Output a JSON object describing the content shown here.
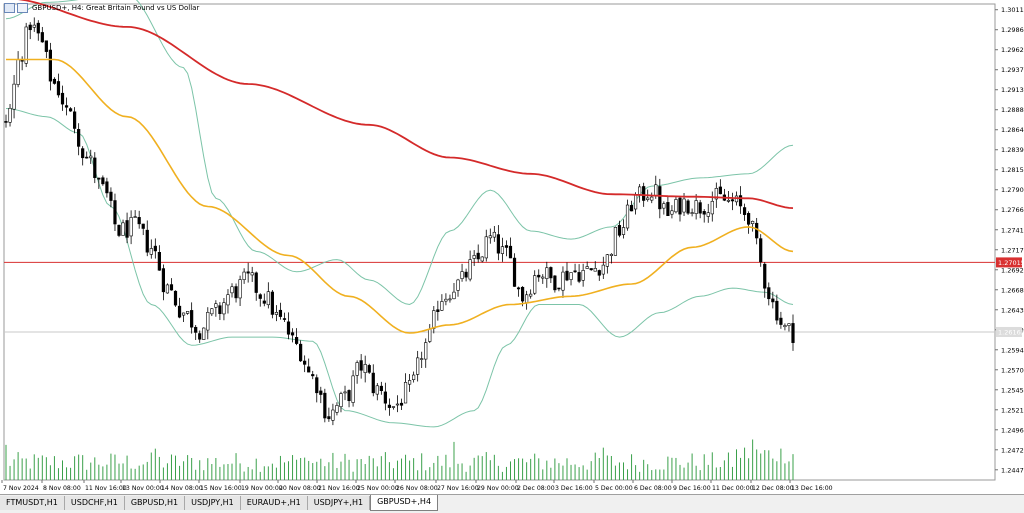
{
  "window": {
    "title": "GBPUSD+, H4:  Great Britain Pound vs US Dollar"
  },
  "tabs": [
    {
      "label": "FTMUSDT,H1",
      "active": false
    },
    {
      "label": "USDCHF,H1",
      "active": false
    },
    {
      "label": "GBPUSD,H1",
      "active": false
    },
    {
      "label": "USDJPY,H1",
      "active": false
    },
    {
      "label": "EURAUD+,H1",
      "active": false
    },
    {
      "label": "USDJPY+,H1",
      "active": false
    },
    {
      "label": "GBPUSD+,H4",
      "active": true
    }
  ],
  "price_axis": {
    "labels": [
      "1.30110",
      "1.29865",
      "1.29620",
      "1.29375",
      "1.29130",
      "1.28885",
      "1.28640",
      "1.28395",
      "1.28150",
      "1.27905",
      "1.27660",
      "1.27415",
      "1.27170",
      "1.26925",
      "1.26680",
      "1.26435",
      "1.26190",
      "1.25945",
      "1.25700",
      "1.25455",
      "1.25210",
      "1.24965",
      "1.24720",
      "1.24475"
    ],
    "level_label": "1.27015",
    "current_label": "1.26163"
  },
  "time_axis": {
    "labels": [
      "7 Nov 2024",
      "8 Nov 08:00",
      "11 Nov 16:00",
      "13 Nov 00:00",
      "14 Nov 08:00",
      "15 Nov 16:00",
      "19 Nov 00:00",
      "20 Nov 08:00",
      "21 Nov 16:00",
      "25 Nov 00:00",
      "26 Nov 08:00",
      "27 Nov 16:00",
      "29 Nov 00:00",
      "2 Dec 08:00",
      "3 Dec 16:00",
      "5 Dec 00:00",
      "6 Dec 08:00",
      "9 Dec 16:00",
      "11 Dec 00:00",
      "12 Dec 08:00",
      "13 Dec 16:00"
    ]
  },
  "colors": {
    "ma_long": "#d42a2a",
    "ma_mid": "#f0b020",
    "bands": "#7cc4a8",
    "level_line": "#d83030",
    "volume": "#3aa04a",
    "candle": "#000000"
  },
  "chart_data": {
    "type": "candlestick",
    "symbol": "GBPUSD+",
    "timeframe": "H4",
    "y_range": [
      1.2435,
      1.3018
    ],
    "horizontal_level": 1.27015,
    "last_price": 1.26163,
    "price_trend_anchors": [
      [
        0,
        1.2875
      ],
      [
        4,
        1.296
      ],
      [
        6,
        1.2995
      ],
      [
        8,
        1.2978
      ],
      [
        12,
        1.292
      ],
      [
        16,
        1.288
      ],
      [
        20,
        1.283
      ],
      [
        24,
        1.279
      ],
      [
        28,
        1.274
      ],
      [
        32,
        1.2745
      ],
      [
        36,
        1.272
      ],
      [
        40,
        1.267
      ],
      [
        44,
        1.264
      ],
      [
        48,
        1.262
      ],
      [
        52,
        1.264
      ],
      [
        56,
        1.2665
      ],
      [
        60,
        1.268
      ],
      [
        64,
        1.266
      ],
      [
        68,
        1.263
      ],
      [
        72,
        1.26
      ],
      [
        76,
        1.256
      ],
      [
        80,
        1.2515
      ],
      [
        84,
        1.2535
      ],
      [
        88,
        1.2575
      ],
      [
        92,
        1.2545
      ],
      [
        96,
        1.2525
      ],
      [
        100,
        1.2545
      ],
      [
        104,
        1.26
      ],
      [
        108,
        1.266
      ],
      [
        112,
        1.2675
      ],
      [
        116,
        1.27
      ],
      [
        120,
        1.273
      ],
      [
        124,
        1.271
      ],
      [
        128,
        1.266
      ],
      [
        132,
        1.269
      ],
      [
        136,
        1.268
      ],
      [
        140,
        1.269
      ],
      [
        144,
        1.269
      ],
      [
        148,
        1.27
      ],
      [
        152,
        1.274
      ],
      [
        156,
        1.278
      ],
      [
        160,
        1.279
      ],
      [
        164,
        1.276
      ],
      [
        168,
        1.2775
      ],
      [
        172,
        1.277
      ],
      [
        176,
        1.278
      ],
      [
        180,
        1.2775
      ],
      [
        184,
        1.276
      ],
      [
        186,
        1.272
      ],
      [
        188,
        1.268
      ],
      [
        190,
        1.265
      ],
      [
        193,
        1.262
      ],
      [
        195,
        1.2616
      ]
    ],
    "bar_count": 196,
    "ma_long_anchors": [
      [
        0,
        1.3025
      ],
      [
        30,
        1.299
      ],
      [
        60,
        1.292
      ],
      [
        90,
        1.287
      ],
      [
        110,
        1.283
      ],
      [
        130,
        1.281
      ],
      [
        150,
        1.2785
      ],
      [
        170,
        1.2782
      ],
      [
        184,
        1.278
      ],
      [
        195,
        1.2768
      ]
    ],
    "ma_mid_anchors": [
      [
        0,
        1.295
      ],
      [
        12,
        1.295
      ],
      [
        30,
        1.288
      ],
      [
        50,
        1.277
      ],
      [
        70,
        1.271
      ],
      [
        85,
        1.266
      ],
      [
        100,
        1.2615
      ],
      [
        110,
        1.2625
      ],
      [
        125,
        1.265
      ],
      [
        140,
        1.266
      ],
      [
        155,
        1.2675
      ],
      [
        170,
        1.272
      ],
      [
        184,
        1.2745
      ],
      [
        195,
        1.2715
      ]
    ],
    "band_upper_anchors": [
      [
        0,
        1.3
      ],
      [
        10,
        1.302
      ],
      [
        30,
        1.303
      ],
      [
        44,
        1.294
      ],
      [
        52,
        1.278
      ],
      [
        62,
        1.2715
      ],
      [
        72,
        1.269
      ],
      [
        82,
        1.2705
      ],
      [
        90,
        1.268
      ],
      [
        100,
        1.265
      ],
      [
        110,
        1.274
      ],
      [
        120,
        1.279
      ],
      [
        130,
        1.274
      ],
      [
        140,
        1.273
      ],
      [
        150,
        1.2745
      ],
      [
        160,
        1.2795
      ],
      [
        172,
        1.2805
      ],
      [
        184,
        1.281
      ],
      [
        195,
        1.2845
      ]
    ],
    "band_lower_anchors": [
      [
        0,
        1.289
      ],
      [
        10,
        1.288
      ],
      [
        18,
        1.286
      ],
      [
        26,
        1.277
      ],
      [
        36,
        1.265
      ],
      [
        46,
        1.26
      ],
      [
        56,
        1.261
      ],
      [
        66,
        1.261
      ],
      [
        76,
        1.2605
      ],
      [
        84,
        1.252
      ],
      [
        96,
        1.2505
      ],
      [
        106,
        1.25
      ],
      [
        116,
        1.252
      ],
      [
        124,
        1.26
      ],
      [
        132,
        1.265
      ],
      [
        142,
        1.265
      ],
      [
        152,
        1.261
      ],
      [
        162,
        1.264
      ],
      [
        172,
        1.266
      ],
      [
        180,
        1.267
      ],
      [
        188,
        1.2665
      ],
      [
        195,
        1.265
      ]
    ]
  }
}
